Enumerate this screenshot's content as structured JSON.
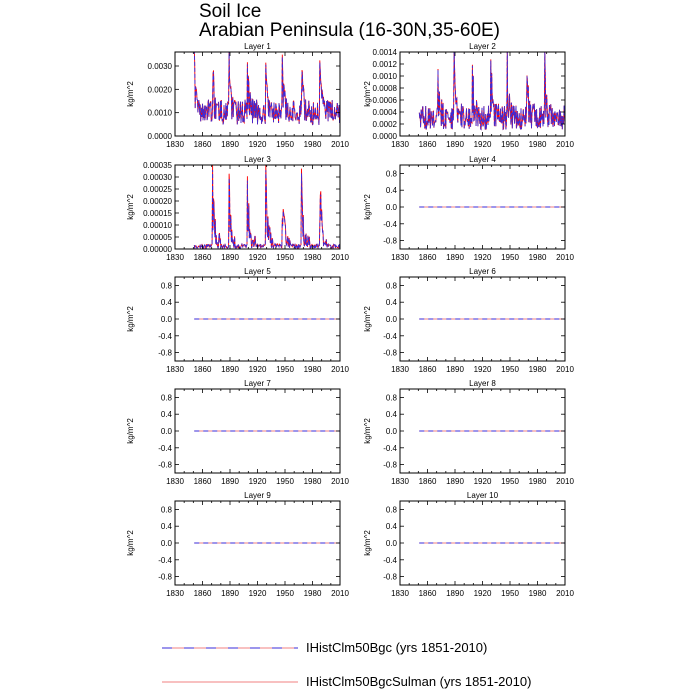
{
  "figure": {
    "title": "Soil Ice",
    "subtitle": "Arabian Peninsula (16-30N,35-60E)"
  },
  "legend": [
    {
      "label": "IHistClm50Bgc (yrs 1851-2010)",
      "color": "#3a2bd8",
      "style": "dashed"
    },
    {
      "label": "IHistClm50BgcSulman (yrs 1851-2010)",
      "color": "#f08080",
      "style": "solid"
    }
  ],
  "chart_data": [
    {
      "type": "line",
      "title": "Layer 1",
      "ylabel": "kg/m^2",
      "xlim": [
        1830,
        2010
      ],
      "xticks": [
        1830,
        1860,
        1890,
        1920,
        1950,
        1980,
        2010
      ],
      "ylim": [
        0,
        0.0036
      ],
      "yticks": [
        "0.0000",
        "0.0010",
        "0.0020",
        "0.0030"
      ],
      "ytick_values": [
        0,
        0.001,
        0.002,
        0.003
      ],
      "x_start": 1851,
      "x_end": 2010,
      "series": [
        {
          "name": "IHistClm50Bgc (yrs 1851-2010)",
          "peak_years": [
            1851,
            1871,
            1889,
            1909,
            1929,
            1947,
            1968,
            1988
          ],
          "peak_value": 0.0033,
          "min_value": 0.0004,
          "base_value": 0.0011
        },
        {
          "name": "IHistClm50BgcSulman (yrs 1851-2010)",
          "peak_years": [
            1851,
            1871,
            1889,
            1909,
            1929,
            1947,
            1968,
            1988
          ],
          "peak_value": 0.0034,
          "min_value": 0.0004,
          "base_value": 0.0011
        }
      ]
    },
    {
      "type": "line",
      "title": "Layer 2",
      "ylabel": "kg/m^2",
      "xlim": [
        1830,
        2010
      ],
      "xticks": [
        1830,
        1860,
        1890,
        1920,
        1950,
        1980,
        2010
      ],
      "ylim": [
        0,
        0.0014
      ],
      "yticks": [
        "0.0000",
        "0.0002",
        "0.0004",
        "0.0006",
        "0.0008",
        "0.0010",
        "0.0012",
        "0.0014"
      ],
      "ytick_values": [
        0,
        0.0002,
        0.0004,
        0.0006,
        0.0008,
        0.001,
        0.0012,
        0.0014
      ],
      "x_start": 1851,
      "x_end": 2010,
      "series": [
        {
          "name": "IHistClm50Bgc (yrs 1851-2010)",
          "peak_years": [
            1871,
            1889,
            1909,
            1929,
            1947,
            1968,
            1988
          ],
          "peak_value": 0.00133,
          "min_value": 5e-05,
          "base_value": 0.00035
        },
        {
          "name": "IHistClm50BgcSulman (yrs 1851-2010)",
          "peak_years": [
            1871,
            1889,
            1909,
            1929,
            1947,
            1968,
            1988
          ],
          "peak_value": 0.00135,
          "min_value": 5e-05,
          "base_value": 0.00035
        }
      ]
    },
    {
      "type": "line",
      "title": "Layer 3",
      "ylabel": "kg/m^2",
      "xlim": [
        1830,
        2010
      ],
      "xticks": [
        1830,
        1860,
        1890,
        1920,
        1950,
        1980,
        2010
      ],
      "ylim": [
        0,
        0.00035
      ],
      "yticks": [
        "0.00000",
        "0.00005",
        "0.00010",
        "0.00015",
        "0.00020",
        "0.00025",
        "0.00030",
        "0.00035"
      ],
      "ytick_values": [
        0,
        5e-05,
        0.0001,
        0.00015,
        0.0002,
        0.00025,
        0.0003,
        0.00035
      ],
      "x_start": 1851,
      "x_end": 2010,
      "series": [
        {
          "name": "IHistClm50Bgc (yrs 1851-2010)",
          "peak_years": [
            1871,
            1889,
            1909,
            1929,
            1947,
            1968,
            1988
          ],
          "peak_value": 0.00032,
          "min_value": 0.0,
          "base_value": 1.5e-05
        },
        {
          "name": "IHistClm50BgcSulman (yrs 1851-2010)",
          "peak_years": [
            1871,
            1889,
            1909,
            1929,
            1947,
            1968,
            1988
          ],
          "peak_value": 0.00034,
          "min_value": 0.0,
          "base_value": 1.5e-05
        }
      ]
    },
    {
      "type": "line",
      "title": "Layer 4",
      "ylabel": "kg/m^2",
      "xlim": [
        1830,
        2010
      ],
      "xticks": [
        1830,
        1860,
        1890,
        1920,
        1950,
        1980,
        2010
      ],
      "ylim": [
        -1,
        1
      ],
      "yticks": [
        "0.8",
        "0.4",
        "0.0",
        "-0.4",
        "-0.8"
      ],
      "ytick_values": [
        0.8,
        0.4,
        0.0,
        -0.4,
        -0.8
      ],
      "x_start": 1851,
      "x_end": 2010,
      "series": [
        {
          "name": "IHistClm50Bgc (yrs 1851-2010)",
          "constant": 0
        },
        {
          "name": "IHistClm50BgcSulman (yrs 1851-2010)",
          "constant": 0
        }
      ]
    },
    {
      "type": "line",
      "title": "Layer 5",
      "ylabel": "kg/m^2",
      "xlim": [
        1830,
        2010
      ],
      "xticks": [
        1830,
        1860,
        1890,
        1920,
        1950,
        1980,
        2010
      ],
      "ylim": [
        -1,
        1
      ],
      "yticks": [
        "0.8",
        "0.4",
        "0.0",
        "-0.4",
        "-0.8"
      ],
      "ytick_values": [
        0.8,
        0.4,
        0.0,
        -0.4,
        -0.8
      ],
      "x_start": 1851,
      "x_end": 2010,
      "series": [
        {
          "name": "IHistClm50Bgc (yrs 1851-2010)",
          "constant": 0
        },
        {
          "name": "IHistClm50BgcSulman (yrs 1851-2010)",
          "constant": 0
        }
      ]
    },
    {
      "type": "line",
      "title": "Layer 6",
      "ylabel": "kg/m^2",
      "xlim": [
        1830,
        2010
      ],
      "xticks": [
        1830,
        1860,
        1890,
        1920,
        1950,
        1980,
        2010
      ],
      "ylim": [
        -1,
        1
      ],
      "yticks": [
        "0.8",
        "0.4",
        "0.0",
        "-0.4",
        "-0.8"
      ],
      "ytick_values": [
        0.8,
        0.4,
        0.0,
        -0.4,
        -0.8
      ],
      "x_start": 1851,
      "x_end": 2010,
      "series": [
        {
          "name": "IHistClm50Bgc (yrs 1851-2010)",
          "constant": 0
        },
        {
          "name": "IHistClm50BgcSulman (yrs 1851-2010)",
          "constant": 0
        }
      ]
    },
    {
      "type": "line",
      "title": "Layer 7",
      "ylabel": "kg/m^2",
      "xlim": [
        1830,
        2010
      ],
      "xticks": [
        1830,
        1860,
        1890,
        1920,
        1950,
        1980,
        2010
      ],
      "ylim": [
        -1,
        1
      ],
      "yticks": [
        "0.8",
        "0.4",
        "0.0",
        "-0.4",
        "-0.8"
      ],
      "ytick_values": [
        0.8,
        0.4,
        0.0,
        -0.4,
        -0.8
      ],
      "x_start": 1851,
      "x_end": 2010,
      "series": [
        {
          "name": "IHistClm50Bgc (yrs 1851-2010)",
          "constant": 0
        },
        {
          "name": "IHistClm50BgcSulman (yrs 1851-2010)",
          "constant": 0
        }
      ]
    },
    {
      "type": "line",
      "title": "Layer 8",
      "ylabel": "kg/m^2",
      "xlim": [
        1830,
        2010
      ],
      "xticks": [
        1830,
        1860,
        1890,
        1920,
        1950,
        1980,
        2010
      ],
      "ylim": [
        -1,
        1
      ],
      "yticks": [
        "0.8",
        "0.4",
        "0.0",
        "-0.4",
        "-0.8"
      ],
      "ytick_values": [
        0.8,
        0.4,
        0.0,
        -0.4,
        -0.8
      ],
      "x_start": 1851,
      "x_end": 2010,
      "series": [
        {
          "name": "IHistClm50Bgc (yrs 1851-2010)",
          "constant": 0
        },
        {
          "name": "IHistClm50BgcSulman (yrs 1851-2010)",
          "constant": 0
        }
      ]
    },
    {
      "type": "line",
      "title": "Layer 9",
      "ylabel": "kg/m^2",
      "xlim": [
        1830,
        2010
      ],
      "xticks": [
        1830,
        1860,
        1890,
        1920,
        1950,
        1980,
        2010
      ],
      "ylim": [
        -1,
        1
      ],
      "yticks": [
        "0.8",
        "0.4",
        "0.0",
        "-0.4",
        "-0.8"
      ],
      "ytick_values": [
        0.8,
        0.4,
        0.0,
        -0.4,
        -0.8
      ],
      "x_start": 1851,
      "x_end": 2010,
      "series": [
        {
          "name": "IHistClm50Bgc (yrs 1851-2010)",
          "constant": 0
        },
        {
          "name": "IHistClm50BgcSulman (yrs 1851-2010)",
          "constant": 0
        }
      ]
    },
    {
      "type": "line",
      "title": "Layer 10",
      "ylabel": "kg/m^2",
      "xlim": [
        1830,
        2010
      ],
      "xticks": [
        1830,
        1860,
        1890,
        1920,
        1950,
        1980,
        2010
      ],
      "ylim": [
        -1,
        1
      ],
      "yticks": [
        "0.8",
        "0.4",
        "0.0",
        "-0.4",
        "-0.8"
      ],
      "ytick_values": [
        0.8,
        0.4,
        0.0,
        -0.4,
        -0.8
      ],
      "x_start": 1851,
      "x_end": 2010,
      "series": [
        {
          "name": "IHistClm50Bgc (yrs 1851-2010)",
          "constant": 0
        },
        {
          "name": "IHistClm50BgcSulman (yrs 1851-2010)",
          "constant": 0
        }
      ]
    }
  ]
}
